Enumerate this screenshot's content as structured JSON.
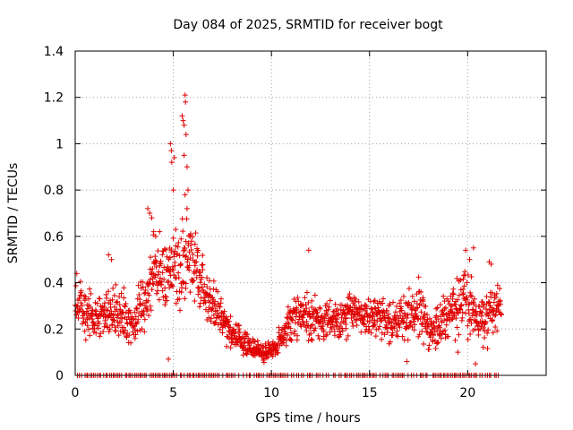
{
  "chart_data": {
    "type": "scatter",
    "title": "Day 084 of 2025, SRMTID for receiver bogt",
    "xlabel": "GPS time / hours",
    "ylabel": "SRMTID / TECUs",
    "xlim": [
      0,
      24
    ],
    "ylim": [
      0,
      1.4
    ],
    "xticks": [
      0,
      5,
      10,
      15,
      20
    ],
    "xtick_labels": [
      "0",
      "5",
      "10",
      "15",
      "20"
    ],
    "yticks": [
      0,
      0.2,
      0.4,
      0.6,
      0.8,
      1.0,
      1.2,
      1.4
    ],
    "ytick_labels": [
      "0",
      "0.2",
      "0.4",
      "0.6",
      "0.8",
      "1",
      "1.2",
      "1.4"
    ],
    "grid": true,
    "marker": "+",
    "series": [
      {
        "name": "SRMTID",
        "color": "#e00000",
        "profile_hours": [
          0,
          0.5,
          1,
          1.5,
          2,
          2.5,
          3,
          3.5,
          4,
          4.5,
          5,
          5.5,
          6,
          6.5,
          7,
          7.5,
          8,
          8.5,
          9,
          9.5,
          10,
          10.5,
          11,
          11.5,
          12,
          12.5,
          13,
          13.5,
          14,
          14.5,
          15,
          15.5,
          16,
          16.5,
          17,
          17.5,
          18,
          18.5,
          19,
          19.5,
          20,
          20.5,
          21,
          21.5
        ],
        "profile_median": [
          0.32,
          0.26,
          0.24,
          0.25,
          0.28,
          0.26,
          0.22,
          0.3,
          0.45,
          0.42,
          0.45,
          0.5,
          0.48,
          0.4,
          0.3,
          0.25,
          0.18,
          0.14,
          0.12,
          0.1,
          0.1,
          0.15,
          0.24,
          0.27,
          0.25,
          0.22,
          0.24,
          0.25,
          0.28,
          0.26,
          0.25,
          0.26,
          0.22,
          0.24,
          0.26,
          0.28,
          0.2,
          0.22,
          0.27,
          0.3,
          0.3,
          0.25,
          0.25,
          0.3
        ],
        "profile_spread": [
          0.1,
          0.1,
          0.08,
          0.1,
          0.1,
          0.1,
          0.1,
          0.12,
          0.15,
          0.14,
          0.15,
          0.2,
          0.15,
          0.12,
          0.1,
          0.08,
          0.06,
          0.05,
          0.05,
          0.04,
          0.05,
          0.07,
          0.08,
          0.1,
          0.1,
          0.08,
          0.08,
          0.08,
          0.09,
          0.08,
          0.08,
          0.08,
          0.08,
          0.09,
          0.09,
          0.1,
          0.08,
          0.09,
          0.1,
          0.12,
          0.14,
          0.1,
          0.1,
          0.08
        ],
        "peak_points": [
          [
            4.85,
            1.0
          ],
          [
            4.9,
            0.97
          ],
          [
            4.92,
            0.92
          ],
          [
            5.0,
            0.8
          ],
          [
            5.05,
            0.94
          ],
          [
            5.45,
            1.12
          ],
          [
            5.5,
            1.1
          ],
          [
            5.55,
            1.08
          ],
          [
            5.6,
            1.21
          ],
          [
            5.62,
            1.18
          ],
          [
            5.65,
            1.04
          ],
          [
            5.55,
            0.95
          ],
          [
            5.7,
            0.9
          ],
          [
            5.6,
            0.78
          ],
          [
            5.7,
            0.72
          ],
          [
            5.75,
            0.8
          ],
          [
            3.7,
            0.72
          ],
          [
            3.8,
            0.7
          ],
          [
            3.9,
            0.68
          ],
          [
            4.0,
            0.62
          ],
          [
            4.1,
            0.6
          ],
          [
            4.3,
            0.62
          ],
          [
            1.7,
            0.52
          ],
          [
            1.85,
            0.5
          ],
          [
            11.9,
            0.54
          ],
          [
            19.9,
            0.54
          ],
          [
            20.1,
            0.5
          ],
          [
            20.3,
            0.55
          ],
          [
            21.1,
            0.49
          ],
          [
            21.2,
            0.48
          ],
          [
            4.75,
            0.07
          ],
          [
            16.9,
            0.06
          ],
          [
            20.4,
            0.05
          ],
          [
            19.5,
            0.1
          ]
        ],
        "zero_band": [
          0.1,
          21.6
        ],
        "data_end_hour": 21.7
      }
    ]
  }
}
